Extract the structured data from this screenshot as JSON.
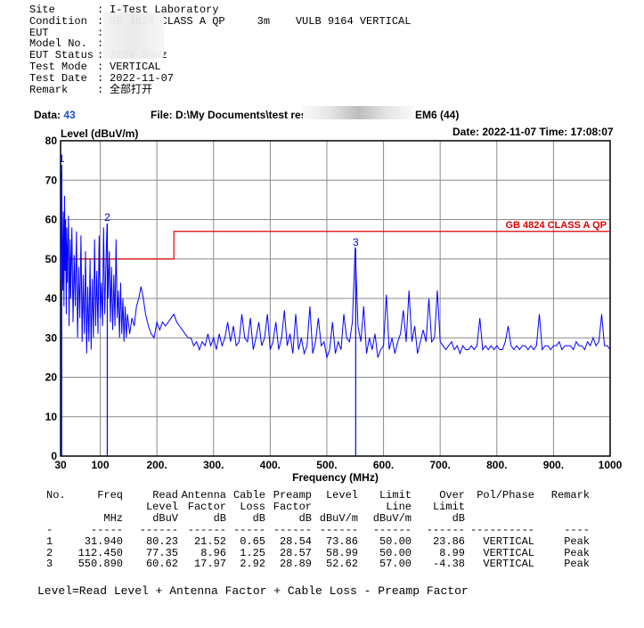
{
  "header": [
    {
      "key": "Site",
      "value": "I-Test Laboratory"
    },
    {
      "key": "Condition",
      "value": "GB 4824 CLASS A QP     3m    VULB 9164 VERTICAL"
    },
    {
      "key": "EUT",
      "value": ""
    },
    {
      "key": "Model No.",
      "value": ""
    },
    {
      "key": "EUT Status",
      "value": "220V 50Hz"
    },
    {
      "key": "Test Mode",
      "value": "VERTICAL"
    },
    {
      "key": "Test Date",
      "value": "2022-11-07"
    },
    {
      "key": "Remark",
      "value": "全部打开"
    }
  ],
  "info": {
    "data_label": "Data:",
    "data_value": "43",
    "file_label": "File: D:\\My Documents\\test resu",
    "file_suffix": "EM6  (44)",
    "date_text": "Date: 2022-11-07  Time: 17:08:07"
  },
  "chart_data": {
    "type": "line",
    "ylabel": "Level (dBuV/m)",
    "xlabel": "Frequency (MHz)",
    "ylim": [
      0,
      80
    ],
    "xlim": [
      30,
      1000
    ],
    "yticks": [
      "0",
      "10",
      "20",
      "30",
      "40",
      "50",
      "60",
      "70",
      "80"
    ],
    "xticks": [
      {
        "v": 30,
        "t": "30"
      },
      {
        "v": 100,
        "t": "100"
      },
      {
        "v": 200,
        "t": "200."
      },
      {
        "v": 300,
        "t": "300."
      },
      {
        "v": 400,
        "t": "400."
      },
      {
        "v": 500,
        "t": "500."
      },
      {
        "v": 600,
        "t": "600."
      },
      {
        "v": 700,
        "t": "700."
      },
      {
        "v": 800,
        "t": "800."
      },
      {
        "v": 900,
        "t": "900."
      },
      {
        "v": 1000,
        "t": "1000"
      }
    ],
    "limit_label": "GB 4824 CLASS A QP",
    "limit": [
      [
        30,
        50
      ],
      [
        230,
        50
      ],
      [
        230,
        57
      ],
      [
        1000,
        57
      ]
    ],
    "markers": [
      {
        "label": "1",
        "freq": 31.94,
        "level": 73.86
      },
      {
        "label": "2",
        "freq": 112.45,
        "level": 58.99
      },
      {
        "label": "3",
        "freq": 550.89,
        "level": 52.62
      }
    ],
    "series": [
      {
        "points": [
          [
            30,
            45
          ],
          [
            31,
            68
          ],
          [
            32,
            72
          ],
          [
            33,
            55
          ],
          [
            34,
            42
          ],
          [
            35,
            62
          ],
          [
            36,
            38
          ],
          [
            37,
            66
          ],
          [
            38,
            47
          ],
          [
            39,
            60
          ],
          [
            40,
            36
          ],
          [
            41,
            58
          ],
          [
            42,
            44
          ],
          [
            44,
            61
          ],
          [
            45,
            33
          ],
          [
            47,
            55
          ],
          [
            48,
            40
          ],
          [
            50,
            58
          ],
          [
            52,
            34
          ],
          [
            54,
            51
          ],
          [
            56,
            38
          ],
          [
            58,
            57
          ],
          [
            60,
            30
          ],
          [
            62,
            48
          ],
          [
            64,
            35
          ],
          [
            66,
            56
          ],
          [
            68,
            29
          ],
          [
            70,
            46
          ],
          [
            72,
            31
          ],
          [
            74,
            52
          ],
          [
            76,
            26
          ],
          [
            78,
            43
          ],
          [
            80,
            29
          ],
          [
            82,
            50
          ],
          [
            84,
            27
          ],
          [
            86,
            45
          ],
          [
            88,
            30
          ],
          [
            90,
            55
          ],
          [
            92,
            33
          ],
          [
            94,
            47
          ],
          [
            96,
            31
          ],
          [
            98,
            56
          ],
          [
            100,
            35
          ],
          [
            102,
            44
          ],
          [
            104,
            33
          ],
          [
            106,
            58
          ],
          [
            108,
            36
          ],
          [
            110,
            49
          ],
          [
            112,
            59
          ],
          [
            114,
            40
          ],
          [
            116,
            52
          ],
          [
            118,
            34
          ],
          [
            120,
            48
          ],
          [
            122,
            32
          ],
          [
            124,
            46
          ],
          [
            126,
            33
          ],
          [
            128,
            55
          ],
          [
            130,
            35
          ],
          [
            132,
            42
          ],
          [
            134,
            30
          ],
          [
            136,
            44
          ],
          [
            138,
            31
          ],
          [
            140,
            40
          ],
          [
            142,
            29
          ],
          [
            144,
            38
          ],
          [
            146,
            30
          ],
          [
            148,
            36
          ],
          [
            152,
            31
          ],
          [
            156,
            35
          ],
          [
            160,
            33
          ],
          [
            164,
            38
          ],
          [
            168,
            40
          ],
          [
            172,
            43
          ],
          [
            176,
            40
          ],
          [
            180,
            36
          ],
          [
            185,
            33
          ],
          [
            190,
            31
          ],
          [
            195,
            30
          ],
          [
            200,
            34
          ],
          [
            205,
            32
          ],
          [
            210,
            34
          ],
          [
            215,
            33
          ],
          [
            220,
            34
          ],
          [
            225,
            35
          ],
          [
            230,
            36
          ],
          [
            235,
            34
          ],
          [
            240,
            33
          ],
          [
            245,
            32
          ],
          [
            250,
            31
          ],
          [
            255,
            30
          ],
          [
            260,
            30
          ],
          [
            265,
            28
          ],
          [
            270,
            29
          ],
          [
            275,
            27
          ],
          [
            280,
            29
          ],
          [
            285,
            28
          ],
          [
            290,
            31
          ],
          [
            295,
            28
          ],
          [
            300,
            30
          ],
          [
            305,
            27
          ],
          [
            310,
            31
          ],
          [
            315,
            28
          ],
          [
            320,
            30
          ],
          [
            325,
            34
          ],
          [
            330,
            29
          ],
          [
            335,
            33
          ],
          [
            340,
            28
          ],
          [
            345,
            29
          ],
          [
            350,
            36
          ],
          [
            355,
            30
          ],
          [
            360,
            29
          ],
          [
            365,
            35
          ],
          [
            370,
            27
          ],
          [
            375,
            30
          ],
          [
            380,
            34
          ],
          [
            385,
            28
          ],
          [
            390,
            30
          ],
          [
            395,
            36
          ],
          [
            400,
            27
          ],
          [
            405,
            29
          ],
          [
            410,
            34
          ],
          [
            415,
            27
          ],
          [
            420,
            30
          ],
          [
            425,
            37
          ],
          [
            430,
            28
          ],
          [
            435,
            31
          ],
          [
            440,
            26
          ],
          [
            445,
            36
          ],
          [
            450,
            27
          ],
          [
            455,
            30
          ],
          [
            460,
            26
          ],
          [
            465,
            28
          ],
          [
            470,
            38
          ],
          [
            475,
            26
          ],
          [
            480,
            29
          ],
          [
            485,
            35
          ],
          [
            490,
            28
          ],
          [
            495,
            29
          ],
          [
            500,
            25
          ],
          [
            505,
            27
          ],
          [
            510,
            34
          ],
          [
            515,
            26
          ],
          [
            520,
            29
          ],
          [
            525,
            27
          ],
          [
            530,
            36
          ],
          [
            535,
            30
          ],
          [
            540,
            29
          ],
          [
            545,
            34
          ],
          [
            550,
            53
          ],
          [
            555,
            33
          ],
          [
            560,
            29
          ],
          [
            565,
            38
          ],
          [
            570,
            26
          ],
          [
            575,
            30
          ],
          [
            580,
            27
          ],
          [
            585,
            31
          ],
          [
            590,
            25
          ],
          [
            595,
            27
          ],
          [
            600,
            28
          ],
          [
            605,
            41
          ],
          [
            610,
            27
          ],
          [
            615,
            30
          ],
          [
            620,
            26
          ],
          [
            625,
            29
          ],
          [
            630,
            31
          ],
          [
            635,
            37
          ],
          [
            640,
            29
          ],
          [
            645,
            42
          ],
          [
            650,
            29
          ],
          [
            655,
            33
          ],
          [
            660,
            26
          ],
          [
            665,
            29
          ],
          [
            670,
            32
          ],
          [
            675,
            29
          ],
          [
            680,
            40
          ],
          [
            685,
            29
          ],
          [
            690,
            30
          ],
          [
            695,
            42
          ],
          [
            700,
            29
          ],
          [
            705,
            28
          ],
          [
            710,
            27
          ],
          [
            715,
            28
          ],
          [
            720,
            29
          ],
          [
            725,
            27
          ],
          [
            730,
            28
          ],
          [
            735,
            26
          ],
          [
            740,
            28
          ],
          [
            745,
            27
          ],
          [
            750,
            27
          ],
          [
            755,
            28
          ],
          [
            760,
            27
          ],
          [
            765,
            28
          ],
          [
            770,
            35
          ],
          [
            775,
            27
          ],
          [
            780,
            28
          ],
          [
            785,
            27
          ],
          [
            790,
            28
          ],
          [
            795,
            27
          ],
          [
            800,
            28
          ],
          [
            805,
            27
          ],
          [
            810,
            27
          ],
          [
            815,
            29
          ],
          [
            820,
            33
          ],
          [
            825,
            28
          ],
          [
            830,
            27
          ],
          [
            835,
            28
          ],
          [
            840,
            27
          ],
          [
            845,
            28
          ],
          [
            850,
            28
          ],
          [
            855,
            27
          ],
          [
            860,
            28
          ],
          [
            865,
            27
          ],
          [
            870,
            28
          ],
          [
            875,
            36
          ],
          [
            880,
            27
          ],
          [
            885,
            28
          ],
          [
            890,
            28
          ],
          [
            895,
            27
          ],
          [
            900,
            28
          ],
          [
            905,
            28
          ],
          [
            910,
            29
          ],
          [
            915,
            27
          ],
          [
            920,
            28
          ],
          [
            925,
            28
          ],
          [
            930,
            28
          ],
          [
            935,
            27
          ],
          [
            940,
            29
          ],
          [
            945,
            28
          ],
          [
            950,
            28
          ],
          [
            955,
            27
          ],
          [
            960,
            29
          ],
          [
            965,
            28
          ],
          [
            970,
            30
          ],
          [
            975,
            28
          ],
          [
            980,
            29
          ],
          [
            985,
            36
          ],
          [
            990,
            28
          ],
          [
            995,
            28
          ],
          [
            1000,
            27
          ]
        ]
      }
    ]
  },
  "table": {
    "headers": [
      [
        "No.",
        "Freq",
        "Read",
        "Antenna",
        "Cable",
        "Preamp",
        "Level",
        "Limit",
        "Over",
        "Pol/Phase",
        "Remark"
      ],
      [
        "",
        "",
        "Level",
        "Factor",
        "Loss",
        "Factor",
        "",
        "Line",
        "Limit",
        "",
        ""
      ],
      [
        "",
        "MHz",
        "dBuV",
        "dB",
        "dB",
        "dB",
        "dBuV/m",
        "dBuV/m",
        "dB",
        "",
        ""
      ]
    ],
    "dashes": [
      "-",
      "-----",
      "------",
      "------",
      "-----",
      "------",
      "------",
      "------",
      "------",
      "----------",
      "----"
    ],
    "rows": [
      [
        "1",
        "31.940",
        "80.23",
        "21.52",
        "0.65",
        "28.54",
        "73.86",
        "50.00",
        "23.86",
        "VERTICAL",
        "Peak"
      ],
      [
        "2",
        "112.450",
        "77.35",
        "8.96",
        "1.25",
        "28.57",
        "58.99",
        "50.00",
        "8.99",
        "VERTICAL",
        "Peak"
      ],
      [
        "3",
        "550.890",
        "60.62",
        "17.97",
        "2.92",
        "28.89",
        "52.62",
        "57.00",
        "-4.38",
        "VERTICAL",
        "Peak"
      ]
    ]
  },
  "formula": "Level=Read Level + Antenna Factor + Cable Loss - Preamp Factor",
  "colors": {
    "trace": "#0000ff",
    "limit": "#e00000",
    "marker": "#0000ff",
    "grid": "#8a8a8a"
  }
}
